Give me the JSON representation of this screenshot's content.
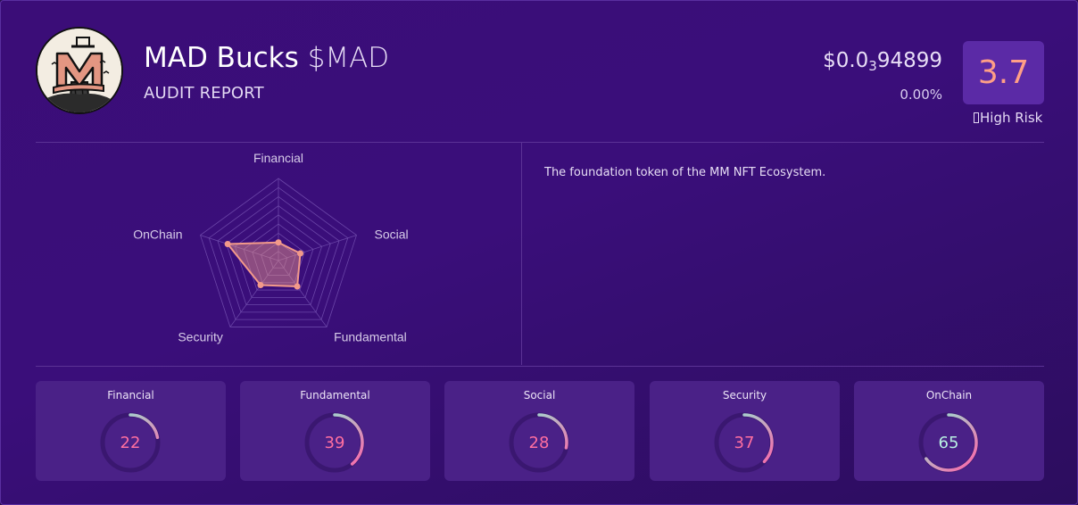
{
  "token": {
    "name": "MAD Bucks",
    "symbol": "$MAD",
    "subtitle": "AUDIT REPORT"
  },
  "price": {
    "prefix": "$0.0",
    "zeros": "3",
    "digits": "94899",
    "change": "0.00%"
  },
  "score": {
    "value": "3.7",
    "risk_label": "High Risk",
    "accent": "#ff9f86"
  },
  "description": "The foundation token of the MM NFT Ecosystem.",
  "radar": {
    "axes": [
      "Financial",
      "Social",
      "Fundamental",
      "Security",
      "OnChain"
    ],
    "values": [
      22,
      28,
      39,
      37,
      65
    ],
    "max": 100
  },
  "metrics": [
    {
      "label": "Financial",
      "value": 22
    },
    {
      "label": "Fundamental",
      "value": 39
    },
    {
      "label": "Social",
      "value": 28
    },
    {
      "label": "Security",
      "value": 37
    },
    {
      "label": "OnChain",
      "value": 65
    }
  ],
  "colors": {
    "background": "#3b0d78",
    "radar_fill": "#f2998a",
    "gauge_start": "#ff5fa8",
    "gauge_end": "#8ef0d8",
    "metric_value": "#ff6fa0"
  }
}
